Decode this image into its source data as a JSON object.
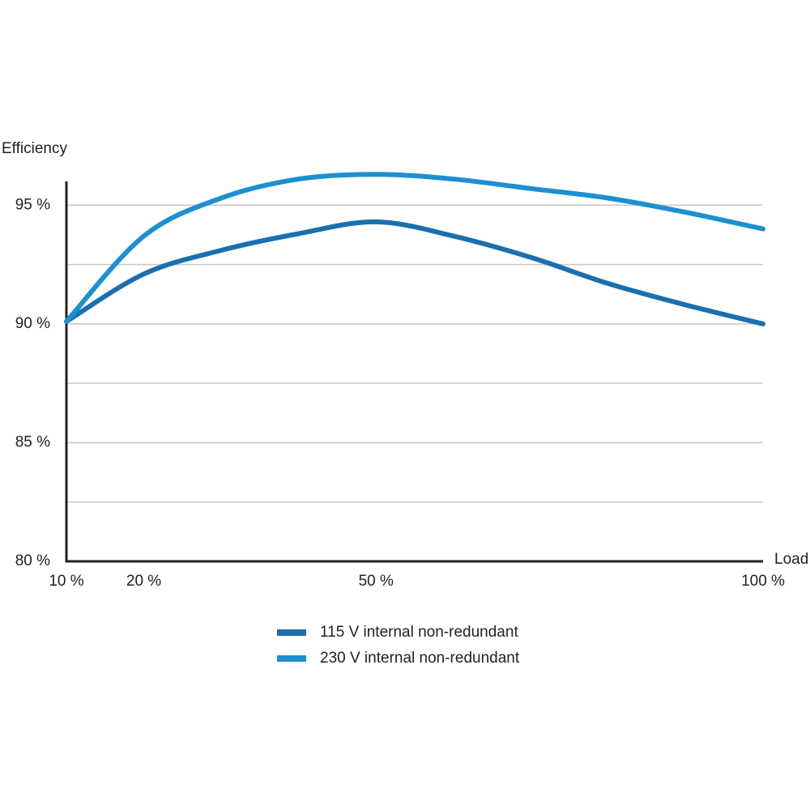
{
  "chart_data": {
    "type": "line",
    "y_label": "Efficiency",
    "x_label": "Load",
    "x": [
      10,
      20,
      30,
      40,
      50,
      60,
      70,
      80,
      90,
      100
    ],
    "series": [
      {
        "name": "115 V internal non-redundant",
        "color": "#1b6fae",
        "values": [
          90.1,
          92.1,
          93.1,
          93.8,
          94.3,
          93.7,
          92.8,
          91.7,
          90.8,
          90.0
        ]
      },
      {
        "name": "230 V internal non-redundant",
        "color": "#1e8fd0",
        "values": [
          90.1,
          93.7,
          95.3,
          96.1,
          96.3,
          96.1,
          95.7,
          95.3,
          94.7,
          94.0
        ]
      }
    ],
    "xlim": [
      10,
      100
    ],
    "xticks": [
      {
        "value": 10,
        "label": "10 %"
      },
      {
        "value": 20,
        "label": "20 %"
      },
      {
        "value": 50,
        "label": "50 %"
      },
      {
        "value": 100,
        "label": "100 %"
      }
    ],
    "ylim": [
      80,
      96
    ],
    "yticks": [
      {
        "value": 80,
        "label": "80 %"
      },
      {
        "value": 85,
        "label": "85 %"
      },
      {
        "value": 90,
        "label": "90 %"
      },
      {
        "value": 95,
        "label": "95 %"
      }
    ],
    "minor_yticks": [
      82.5,
      87.5,
      92.5
    ],
    "grid": true
  }
}
